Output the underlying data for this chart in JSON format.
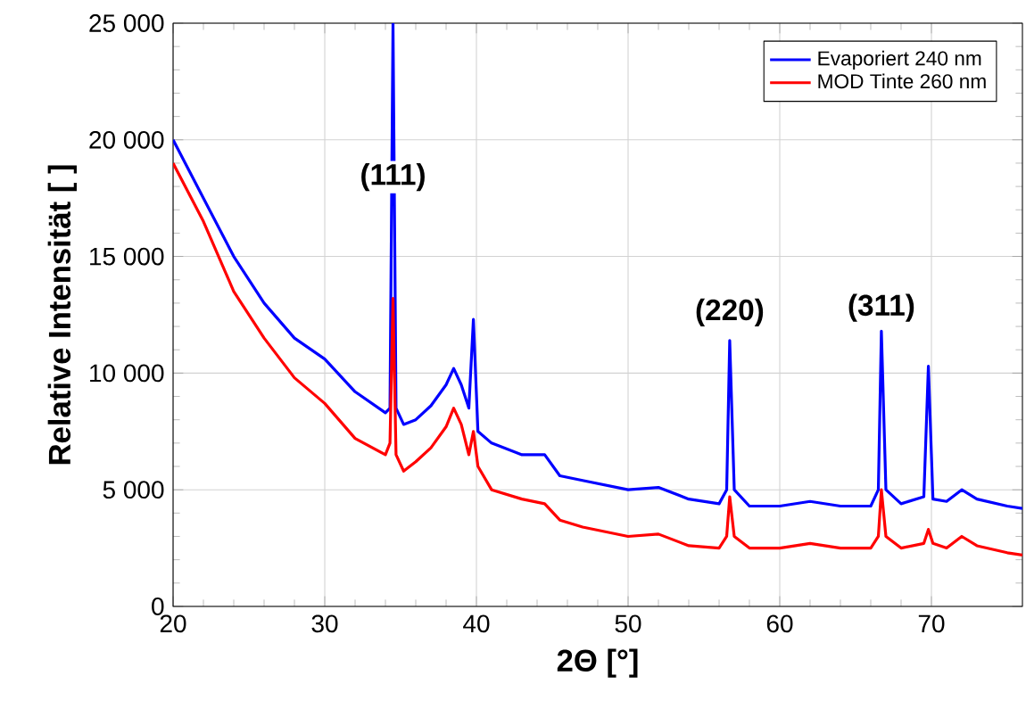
{
  "chart_data": {
    "type": "line",
    "xlabel": "2Θ [°]",
    "ylabel": "Relative Intensität [ ]",
    "xlim": [
      20,
      76
    ],
    "xticks": [
      20,
      30,
      40,
      50,
      60,
      70
    ],
    "ylim": [
      0,
      25000
    ],
    "yticks": [
      {
        "value": 0,
        "label": "0"
      },
      {
        "value": 5000,
        "label": "5 000"
      },
      {
        "value": 10000,
        "label": "10 000"
      },
      {
        "value": 15000,
        "label": "15 000"
      },
      {
        "value": 20000,
        "label": "20 000"
      },
      {
        "value": 25000,
        "label": "25 000"
      }
    ],
    "grid": true,
    "legend": "top right",
    "marker": "none",
    "line_style": "solid",
    "x": [
      20,
      22,
      24,
      26,
      28,
      30,
      32,
      34,
      34.3,
      34.5,
      34.7,
      35.2,
      36,
      37,
      38,
      38.5,
      39,
      39.5,
      39.8,
      40.1,
      41,
      43,
      44.5,
      45.5,
      47,
      50,
      52,
      54,
      56,
      56.5,
      56.7,
      57,
      58,
      60,
      62,
      64,
      66,
      66.5,
      66.7,
      67,
      68,
      69.5,
      69.8,
      70.1,
      71,
      72,
      73,
      75,
      76
    ],
    "series": [
      {
        "name": "Evaporiert 240 nm",
        "color": "#0000ff",
        "values": [
          20000,
          17500,
          15000,
          13000,
          11500,
          10600,
          9200,
          8300,
          8500,
          25000,
          8500,
          7800,
          8000,
          8600,
          9500,
          10200,
          9500,
          8500,
          12300,
          7500,
          7000,
          6500,
          6500,
          5600,
          5400,
          5000,
          5100,
          4600,
          4400,
          5000,
          11400,
          5000,
          4300,
          4300,
          4500,
          4300,
          4300,
          5000,
          11800,
          5000,
          4400,
          4700,
          10300,
          4600,
          4500,
          5000,
          4600,
          4300,
          4200
        ]
      },
      {
        "name": "MOD Tinte 260 nm",
        "color": "#ff0000",
        "values": [
          19000,
          16500,
          13500,
          11500,
          9800,
          8700,
          7200,
          6500,
          7000,
          13200,
          6500,
          5800,
          6200,
          6800,
          7700,
          8500,
          7800,
          6500,
          7500,
          6000,
          5000,
          4600,
          4400,
          3700,
          3400,
          3000,
          3100,
          2600,
          2500,
          3000,
          4700,
          3000,
          2500,
          2500,
          2700,
          2500,
          2500,
          3000,
          5000,
          3000,
          2500,
          2700,
          3300,
          2700,
          2500,
          3000,
          2600,
          2300,
          2200
        ]
      }
    ],
    "annotations": [
      {
        "text": "(111)",
        "x": 34.5,
        "y": 18400
      },
      {
        "text": "(220)",
        "x": 56.7,
        "y": 12600
      },
      {
        "text": "(311)",
        "x": 66.7,
        "y": 12800
      }
    ]
  }
}
